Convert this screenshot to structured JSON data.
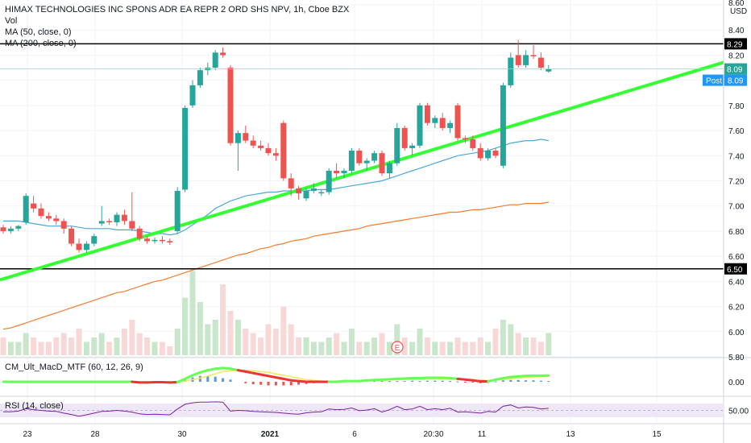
{
  "legend": {
    "title": "HIMAX TECHNOLOGIES INC SPONS ADR EA REPR 2 ORD SHS NPV, 1h, Cboe BZX",
    "vol": "Vol",
    "ma50": "MA (50, close, 0)",
    "ma200": "MA (200, close, 0)"
  },
  "axis": {
    "currency": "USD",
    "top_price": "8.60",
    "price_ticks": [
      "8.40",
      "8.20",
      "7.80",
      "7.60",
      "7.40",
      "7.20",
      "7.00",
      "6.80",
      "6.60",
      "6.40",
      "6.20",
      "6.00",
      "5.80"
    ],
    "macd_tick": "0.00",
    "rsi_tick": "50.00",
    "x_ticks": [
      "23",
      "28",
      "30",
      "2021",
      "6",
      "20:30",
      "11",
      "13",
      "15"
    ]
  },
  "price_tags": {
    "high_line": "8.29",
    "last": "8.09",
    "post_label": "Post",
    "post_value": "8.09",
    "low_line": "6.50"
  },
  "indicators": {
    "macd": "CM_Ult_MacD_MTF (60, 12, 26, 9)",
    "rsi": "RSI (14, close)"
  },
  "earnings_marker": "E",
  "colors": {
    "up": "#26a69a",
    "down": "#ef5350",
    "trendline": "#33ff33",
    "ma50": "#4aa8d8",
    "ma200": "#f57c2f",
    "hline": "#000000",
    "last_tag": "#26a69a",
    "post_tag": "#2196f3",
    "rsi_band": "#ede7f6",
    "rsi_line": "#7b1fa2"
  },
  "chart_data": {
    "type": "candlestick",
    "title": "HIMAX TECHNOLOGIES INC SPONS ADR EA REPR 2 ORD SHS NPV, 1h, Cboe BZX",
    "y_range": [
      5.8,
      8.6
    ],
    "horizontal_lines": [
      8.29,
      6.5
    ],
    "trendline": {
      "from": [
        0,
        6.42
      ],
      "to": [
        74,
        7.76
      ]
    },
    "ohlc": [
      [
        6.83,
        6.85,
        6.78,
        6.8
      ],
      [
        6.8,
        6.84,
        6.78,
        6.82
      ],
      [
        6.82,
        6.85,
        6.8,
        6.84
      ],
      [
        6.87,
        7.1,
        6.85,
        7.08
      ],
      [
        7.02,
        7.08,
        6.95,
        6.98
      ],
      [
        6.98,
        7.02,
        6.9,
        6.92
      ],
      [
        6.92,
        6.95,
        6.88,
        6.9
      ],
      [
        6.9,
        6.93,
        6.85,
        6.88
      ],
      [
        6.88,
        6.9,
        6.78,
        6.82
      ],
      [
        6.82,
        6.84,
        6.68,
        6.7
      ],
      [
        6.7,
        6.74,
        6.63,
        6.65
      ],
      [
        6.65,
        6.72,
        6.63,
        6.7
      ],
      [
        6.7,
        6.78,
        6.68,
        6.76
      ],
      [
        6.86,
        7.0,
        6.84,
        6.88
      ],
      [
        6.88,
        6.9,
        6.85,
        6.87
      ],
      [
        6.87,
        6.95,
        6.84,
        6.93
      ],
      [
        6.93,
        6.97,
        6.85,
        6.88
      ],
      [
        6.88,
        7.11,
        6.8,
        6.82
      ],
      [
        6.82,
        6.84,
        6.72,
        6.74
      ],
      [
        6.74,
        6.76,
        6.7,
        6.72
      ],
      [
        6.72,
        6.75,
        6.7,
        6.73
      ],
      [
        6.73,
        6.76,
        6.7,
        6.72
      ],
      [
        6.72,
        6.74,
        6.69,
        6.71
      ],
      [
        6.8,
        7.15,
        6.78,
        7.12
      ],
      [
        7.13,
        7.8,
        7.11,
        7.78
      ],
      [
        7.8,
        8.0,
        7.78,
        7.96
      ],
      [
        7.96,
        8.1,
        7.94,
        8.08
      ],
      [
        8.08,
        8.14,
        8.04,
        8.1
      ],
      [
        8.1,
        8.24,
        8.08,
        8.22
      ],
      [
        8.22,
        8.26,
        8.18,
        8.2
      ],
      [
        8.1,
        8.12,
        7.48,
        7.5
      ],
      [
        7.5,
        7.6,
        7.28,
        7.58
      ],
      [
        7.58,
        7.64,
        7.5,
        7.52
      ],
      [
        7.52,
        7.56,
        7.46,
        7.48
      ],
      [
        7.48,
        7.52,
        7.44,
        7.46
      ],
      [
        7.46,
        7.5,
        7.4,
        7.42
      ],
      [
        7.42,
        7.46,
        7.36,
        7.4
      ],
      [
        7.66,
        7.68,
        7.2,
        7.22
      ],
      [
        7.22,
        7.26,
        7.08,
        7.14
      ],
      [
        7.14,
        7.16,
        7.05,
        7.1
      ],
      [
        7.06,
        7.14,
        7.04,
        7.12
      ],
      [
        7.12,
        7.18,
        7.1,
        7.14
      ],
      [
        7.1,
        7.13,
        7.08,
        7.11
      ],
      [
        7.11,
        7.3,
        7.09,
        7.28
      ],
      [
        7.28,
        7.34,
        7.22,
        7.26
      ],
      [
        7.26,
        7.3,
        7.22,
        7.28
      ],
      [
        7.28,
        7.46,
        7.26,
        7.44
      ],
      [
        7.44,
        7.46,
        7.32,
        7.34
      ],
      [
        7.34,
        7.38,
        7.28,
        7.36
      ],
      [
        7.36,
        7.44,
        7.34,
        7.42
      ],
      [
        7.42,
        7.44,
        7.24,
        7.26
      ],
      [
        7.26,
        7.36,
        7.22,
        7.34
      ],
      [
        7.34,
        7.66,
        7.32,
        7.62
      ],
      [
        7.62,
        7.64,
        7.44,
        7.46
      ],
      [
        7.46,
        7.5,
        7.4,
        7.48
      ],
      [
        7.48,
        7.82,
        7.46,
        7.8
      ],
      [
        7.8,
        7.82,
        7.64,
        7.66
      ],
      [
        7.66,
        7.72,
        7.62,
        7.7
      ],
      [
        7.7,
        7.74,
        7.6,
        7.62
      ],
      [
        7.62,
        7.68,
        7.58,
        7.66
      ],
      [
        7.8,
        7.82,
        7.52,
        7.54
      ],
      [
        7.54,
        7.56,
        7.5,
        7.53
      ],
      [
        7.53,
        7.56,
        7.44,
        7.46
      ],
      [
        7.46,
        7.5,
        7.36,
        7.38
      ],
      [
        7.38,
        7.46,
        7.36,
        7.44
      ],
      [
        7.44,
        7.46,
        7.38,
        7.4
      ],
      [
        7.32,
        7.98,
        7.3,
        7.96
      ],
      [
        7.96,
        8.22,
        7.94,
        8.18
      ],
      [
        8.2,
        8.32,
        8.1,
        8.12
      ],
      [
        8.12,
        8.24,
        8.1,
        8.2
      ],
      [
        8.2,
        8.28,
        8.17,
        8.19
      ],
      [
        8.18,
        8.22,
        8.08,
        8.1
      ],
      [
        8.07,
        8.12,
        8.06,
        8.09
      ]
    ],
    "volume": [
      4,
      3,
      3,
      5,
      4,
      3,
      3,
      4,
      5,
      4,
      6,
      3,
      4,
      5,
      3,
      4,
      6,
      8,
      5,
      4,
      3,
      3,
      2,
      6,
      13,
      19,
      12,
      7,
      8,
      16,
      10,
      8,
      6,
      5,
      4,
      7,
      6,
      11,
      7,
      4,
      4,
      3,
      3,
      4,
      5,
      3,
      6,
      3,
      3,
      4,
      5,
      3,
      7,
      4,
      3,
      6,
      4,
      3,
      3,
      3,
      4,
      3,
      3,
      4,
      3,
      6,
      8,
      7,
      5,
      4,
      4,
      3,
      5
    ],
    "ma50": [
      6.88,
      6.88,
      6.88,
      6.87,
      6.86,
      6.85,
      6.84,
      6.84,
      6.84,
      6.84,
      6.83,
      6.82,
      6.82,
      6.82,
      6.82,
      6.81,
      6.81,
      6.81,
      6.8,
      6.79,
      6.78,
      6.78,
      6.77,
      6.78,
      6.81,
      6.85,
      6.89,
      6.93,
      6.98,
      7.01,
      7.04,
      7.06,
      7.08,
      7.09,
      7.1,
      7.11,
      7.11,
      7.12,
      7.12,
      7.12,
      7.12,
      7.13,
      7.13,
      7.13,
      7.14,
      7.15,
      7.16,
      7.17,
      7.18,
      7.19,
      7.2,
      7.22,
      7.24,
      7.26,
      7.28,
      7.3,
      7.32,
      7.34,
      7.36,
      7.38,
      7.4,
      7.41,
      7.42,
      7.43,
      7.44,
      7.46,
      7.48,
      7.5,
      7.51,
      7.52,
      7.52,
      7.53,
      7.52
    ],
    "ma200": [
      6.02,
      6.03,
      6.05,
      6.07,
      6.09,
      6.11,
      6.13,
      6.15,
      6.17,
      6.19,
      6.21,
      6.23,
      6.25,
      6.27,
      6.29,
      6.31,
      6.32,
      6.34,
      6.36,
      6.38,
      6.4,
      6.41,
      6.43,
      6.45,
      6.47,
      6.49,
      6.51,
      6.53,
      6.55,
      6.57,
      6.59,
      6.61,
      6.62,
      6.64,
      6.66,
      6.67,
      6.69,
      6.7,
      6.72,
      6.73,
      6.74,
      6.76,
      6.77,
      6.78,
      6.79,
      6.8,
      6.81,
      6.82,
      6.84,
      6.85,
      6.86,
      6.87,
      6.88,
      6.89,
      6.9,
      6.91,
      6.92,
      6.93,
      6.94,
      6.95,
      6.95,
      6.96,
      6.97,
      6.97,
      6.98,
      6.99,
      7.0,
      7.01,
      7.01,
      7.02,
      7.02,
      7.02,
      7.03
    ],
    "macd_line": [
      0.0,
      0.0,
      0.0,
      0.0,
      0.0,
      0.0,
      0.0,
      0.0,
      0.0,
      0.0,
      0.0,
      0.0,
      0.0,
      0.0,
      0.0,
      0.0,
      0.0,
      0.0,
      -0.02,
      -0.02,
      -0.01,
      -0.01,
      -0.02,
      -0.01,
      0.08,
      0.18,
      0.26,
      0.32,
      0.36,
      0.38,
      0.36,
      0.32,
      0.28,
      0.24,
      0.2,
      0.16,
      0.12,
      0.08,
      0.04,
      0.02,
      0.0,
      0.0,
      0.0,
      0.0,
      0.0,
      0.02,
      0.02,
      0.02,
      0.04,
      0.05,
      0.06,
      0.07,
      0.08,
      0.09,
      0.1,
      0.1,
      0.11,
      0.11,
      0.11,
      0.1,
      0.08,
      0.06,
      0.04,
      0.01,
      0.01,
      0.06,
      0.1,
      0.13,
      0.15,
      0.16,
      0.17,
      0.17,
      0.17
    ],
    "macd_signal": [
      0.0,
      0.0,
      0.0,
      0.0,
      0.0,
      0.0,
      0.0,
      0.0,
      0.0,
      0.0,
      0.0,
      0.0,
      0.0,
      0.0,
      0.0,
      0.0,
      0.0,
      0.0,
      0.0,
      0.0,
      0.0,
      0.0,
      0.0,
      0.0,
      0.02,
      0.06,
      0.1,
      0.16,
      0.22,
      0.28,
      0.3,
      0.32,
      0.32,
      0.31,
      0.28,
      0.26,
      0.22,
      0.18,
      0.14,
      0.1,
      0.06,
      0.04,
      0.02,
      0.01,
      0.0,
      0.0,
      0.01,
      0.01,
      0.02,
      0.03,
      0.04,
      0.05,
      0.06,
      0.07,
      0.07,
      0.08,
      0.08,
      0.08,
      0.08,
      0.08,
      0.07,
      0.07,
      0.06,
      0.05,
      0.04,
      0.05,
      0.06,
      0.08,
      0.1,
      0.12,
      0.13,
      0.14,
      0.15
    ],
    "macd_hist": [
      0,
      0,
      0,
      0,
      0,
      0,
      0,
      0,
      0,
      0,
      0,
      0,
      0,
      0,
      0,
      0,
      0,
      0,
      -0.02,
      -0.02,
      -0.01,
      -0.01,
      -0.02,
      -0.01,
      0.06,
      0.12,
      0.16,
      0.16,
      0.14,
      0.1,
      0.06,
      0.0,
      -0.04,
      -0.07,
      -0.08,
      -0.1,
      -0.1,
      -0.1,
      -0.1,
      -0.08,
      -0.06,
      -0.04,
      -0.02,
      -0.01,
      0,
      0.02,
      0.01,
      0.01,
      0.02,
      0.02,
      0.02,
      0.02,
      0.02,
      0.02,
      0.03,
      0.02,
      0.03,
      0.03,
      0.03,
      0.02,
      0.01,
      -0.01,
      -0.02,
      -0.04,
      -0.03,
      0.01,
      0.04,
      0.05,
      0.05,
      0.04,
      0.04,
      0.03,
      0.02
    ],
    "rsi": [
      46,
      46,
      48,
      55,
      52,
      50,
      48,
      47,
      42,
      38,
      33,
      37,
      42,
      47,
      48,
      50,
      48,
      45,
      40,
      38,
      39,
      38,
      37,
      54,
      68,
      72,
      74,
      74,
      75,
      74,
      48,
      50,
      49,
      47,
      46,
      45,
      44,
      42,
      40,
      39,
      43,
      45,
      46,
      54,
      52,
      53,
      57,
      49,
      51,
      55,
      45,
      52,
      62,
      52,
      54,
      62,
      52,
      55,
      52,
      56,
      45,
      46,
      44,
      42,
      47,
      45,
      62,
      66,
      57,
      60,
      59,
      54,
      56
    ]
  }
}
